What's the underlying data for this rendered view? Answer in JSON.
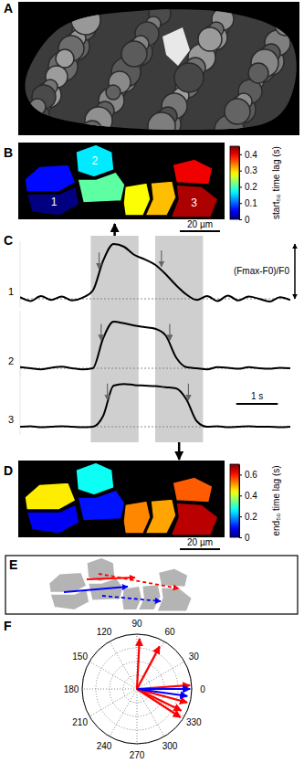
{
  "chart_data": [
    {
      "panel": "A",
      "type": "image"
    },
    {
      "panel": "B",
      "type": "cell_map",
      "categories": [
        null,
        "1",
        "2",
        null,
        null,
        null,
        "3",
        null
      ],
      "values": [
        0.06,
        0.0,
        0.16,
        0.21,
        0.28,
        0.31,
        0.43,
        0.4
      ],
      "colorbar": {
        "title": "start₅₀ time lag (s)",
        "range": [
          0,
          0.45
        ],
        "ticks": [
          0,
          0.1,
          0.2,
          0.3,
          0.4
        ]
      },
      "scale_bar": "20 µm"
    },
    {
      "panel": "C",
      "type": "line",
      "x": [
        0,
        0.25,
        0.5,
        0.75,
        1,
        1.25,
        1.5,
        1.75,
        2,
        2.25,
        2.5,
        2.75,
        3,
        3.25,
        3.5,
        3.75,
        4,
        4.25,
        4.5,
        4.75,
        5,
        5.25,
        5.5,
        5.75,
        6,
        6.25,
        6.5
      ],
      "xlim": [
        0,
        6.5
      ],
      "ylim": [
        -0.15,
        1.05
      ],
      "yticks": [
        0
      ],
      "grid": true,
      "tick_labels": false,
      "shaded_x": [
        [
          1.7,
          2.85
        ],
        [
          3.25,
          4.4
        ]
      ],
      "series": [
        {
          "name": "1",
          "color": "#000000",
          "start50": 1.9,
          "end50": 3.4,
          "values": [
            0.03,
            -0.04,
            0.05,
            -0.02,
            0.04,
            -0.03,
            0.02,
            0.15,
            0.7,
            1.0,
            0.95,
            0.8,
            0.72,
            0.62,
            0.45,
            0.25,
            0.08,
            -0.02,
            0.05,
            -0.04,
            0.06,
            -0.03,
            0.04,
            0.0,
            -0.05,
            0.03,
            -0.02
          ]
        },
        {
          "name": "2",
          "color": "#000000",
          "start50": 1.95,
          "end50": 3.6,
          "values": [
            0.02,
            0.0,
            -0.02,
            0.01,
            0.03,
            0.0,
            -0.02,
            0.0,
            0.55,
            0.85,
            0.82,
            0.78,
            0.75,
            0.72,
            0.6,
            0.2,
            0.02,
            0.0,
            -0.02,
            0.02,
            0.01,
            -0.01,
            0.02,
            0.0,
            -0.01,
            0.01,
            0.0
          ]
        },
        {
          "name": "3",
          "color": "#000000",
          "start50": 2.1,
          "end50": 4.05,
          "values": [
            0.0,
            0.01,
            -0.01,
            0.0,
            0.01,
            0.0,
            -0.01,
            0.0,
            0.2,
            0.75,
            0.78,
            0.76,
            0.75,
            0.74,
            0.72,
            0.7,
            0.5,
            0.1,
            0.0,
            0.01,
            -0.01,
            0.0,
            0.01,
            0.0,
            0.0,
            -0.01,
            0.0
          ]
        }
      ],
      "scale_bars": [
        {
          "value": 1,
          "label": "1 s"
        },
        {
          "value": 1,
          "label": "(Fmax-F0)/F0"
        }
      ]
    },
    {
      "panel": "D",
      "type": "cell_map",
      "values": [
        0.45,
        0.08,
        0.27,
        0.1,
        0.52,
        0.5,
        0.66,
        0.55
      ],
      "colorbar": {
        "title": "end₅₀ time lag (s)",
        "range": [
          0,
          0.7
        ],
        "ticks": [
          0,
          0.2,
          0.4,
          0.6
        ]
      },
      "scale_bar": "20 µm"
    },
    {
      "panel": "E",
      "type": "diagram"
    },
    {
      "panel": "F",
      "type": "polar",
      "xticks": [
        0,
        30,
        60,
        90,
        120,
        150,
        180,
        210,
        240,
        270,
        300,
        330
      ],
      "ylim": [
        0,
        1
      ],
      "yticks": [
        0.25,
        0.5,
        0.75,
        1
      ],
      "grid": true,
      "tick_labels": "x",
      "series": [
        {
          "color": "#ff0000",
          "theta": [
            87,
            62,
            4,
            345,
            334,
            327
          ],
          "values": [
            0.92,
            0.88,
            0.97,
            0.95,
            0.9,
            0.95
          ]
        },
        {
          "color": "#0000ff",
          "theta": [
            0,
            352
          ],
          "values": [
            0.97,
            0.93
          ]
        }
      ]
    }
  ]
}
